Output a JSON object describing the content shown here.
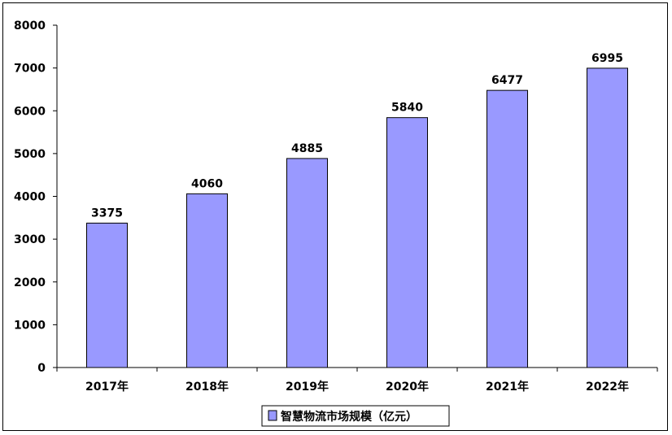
{
  "chart_data": {
    "type": "bar",
    "categories": [
      "2017年",
      "2018年",
      "2019年",
      "2020年",
      "2021年",
      "2022年"
    ],
    "series": [
      {
        "name": "智慧物流市场规模（亿元）",
        "values": [
          3375,
          4060,
          4885,
          5840,
          6477,
          6995
        ],
        "color": "#9999ff",
        "edge_color": "#000000"
      }
    ],
    "y_ticks": [
      "0",
      "1000",
      "2000",
      "3000",
      "4000",
      "5000",
      "6000",
      "7000",
      "8000"
    ],
    "ylim": [
      0,
      8000
    ],
    "grid": false,
    "legend_position": "bottom-center",
    "data_labels": true
  }
}
